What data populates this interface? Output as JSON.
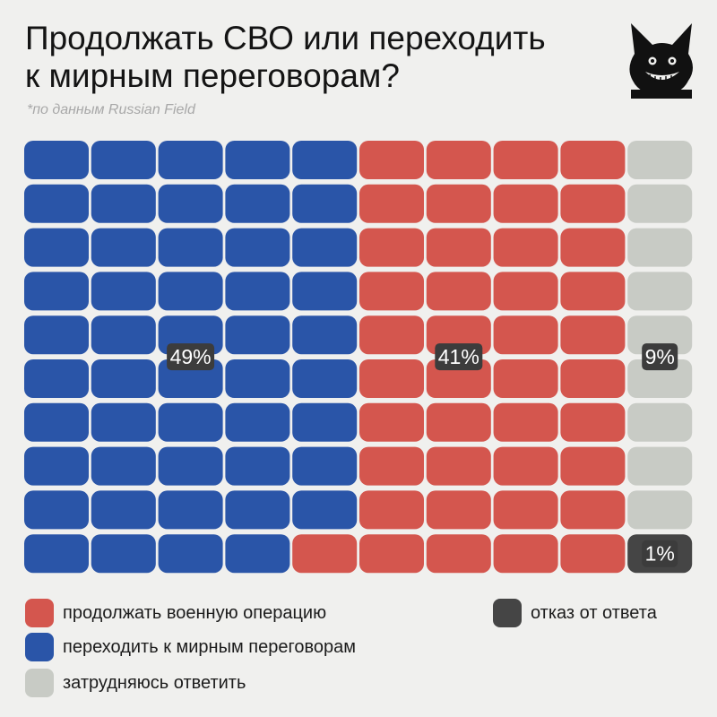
{
  "header": {
    "title_line1": "Продолжать СВО или переходить",
    "title_line2": "к мирным переговорам?",
    "source": "*по данным Russian Field"
  },
  "mascot": {
    "icon": "black-cat-grin-icon"
  },
  "colors": {
    "continue": "#d4564e",
    "peace": "#2a55a8",
    "hard": "#c8cbc5",
    "refuse": "#454545",
    "label_bg": "#3c3c3c",
    "label_text": "#ffffff"
  },
  "chart_data": {
    "type": "waffle",
    "grid": {
      "columns": 10,
      "rows": 10,
      "cell_value_pct": 1
    },
    "title": "Продолжать СВО или переходить к мирным переговорам?",
    "series": [
      {
        "key": "peace",
        "name": "переходить к мирным переговорам",
        "value": 49,
        "label": "49%"
      },
      {
        "key": "continue",
        "name": "продолжать военную операцию",
        "value": 41,
        "label": "41%"
      },
      {
        "key": "hard",
        "name": "затрудняюсь ответить",
        "value": 9,
        "label": "9%"
      },
      {
        "key": "refuse",
        "name": "отказ от ответа",
        "value": 1,
        "label": "1%"
      }
    ]
  },
  "legend": {
    "continue": "продолжать военную операцию",
    "peace": "переходить к мирным переговорам",
    "hard": "затрудняюсь ответить",
    "refuse": "отказ от ответа"
  }
}
